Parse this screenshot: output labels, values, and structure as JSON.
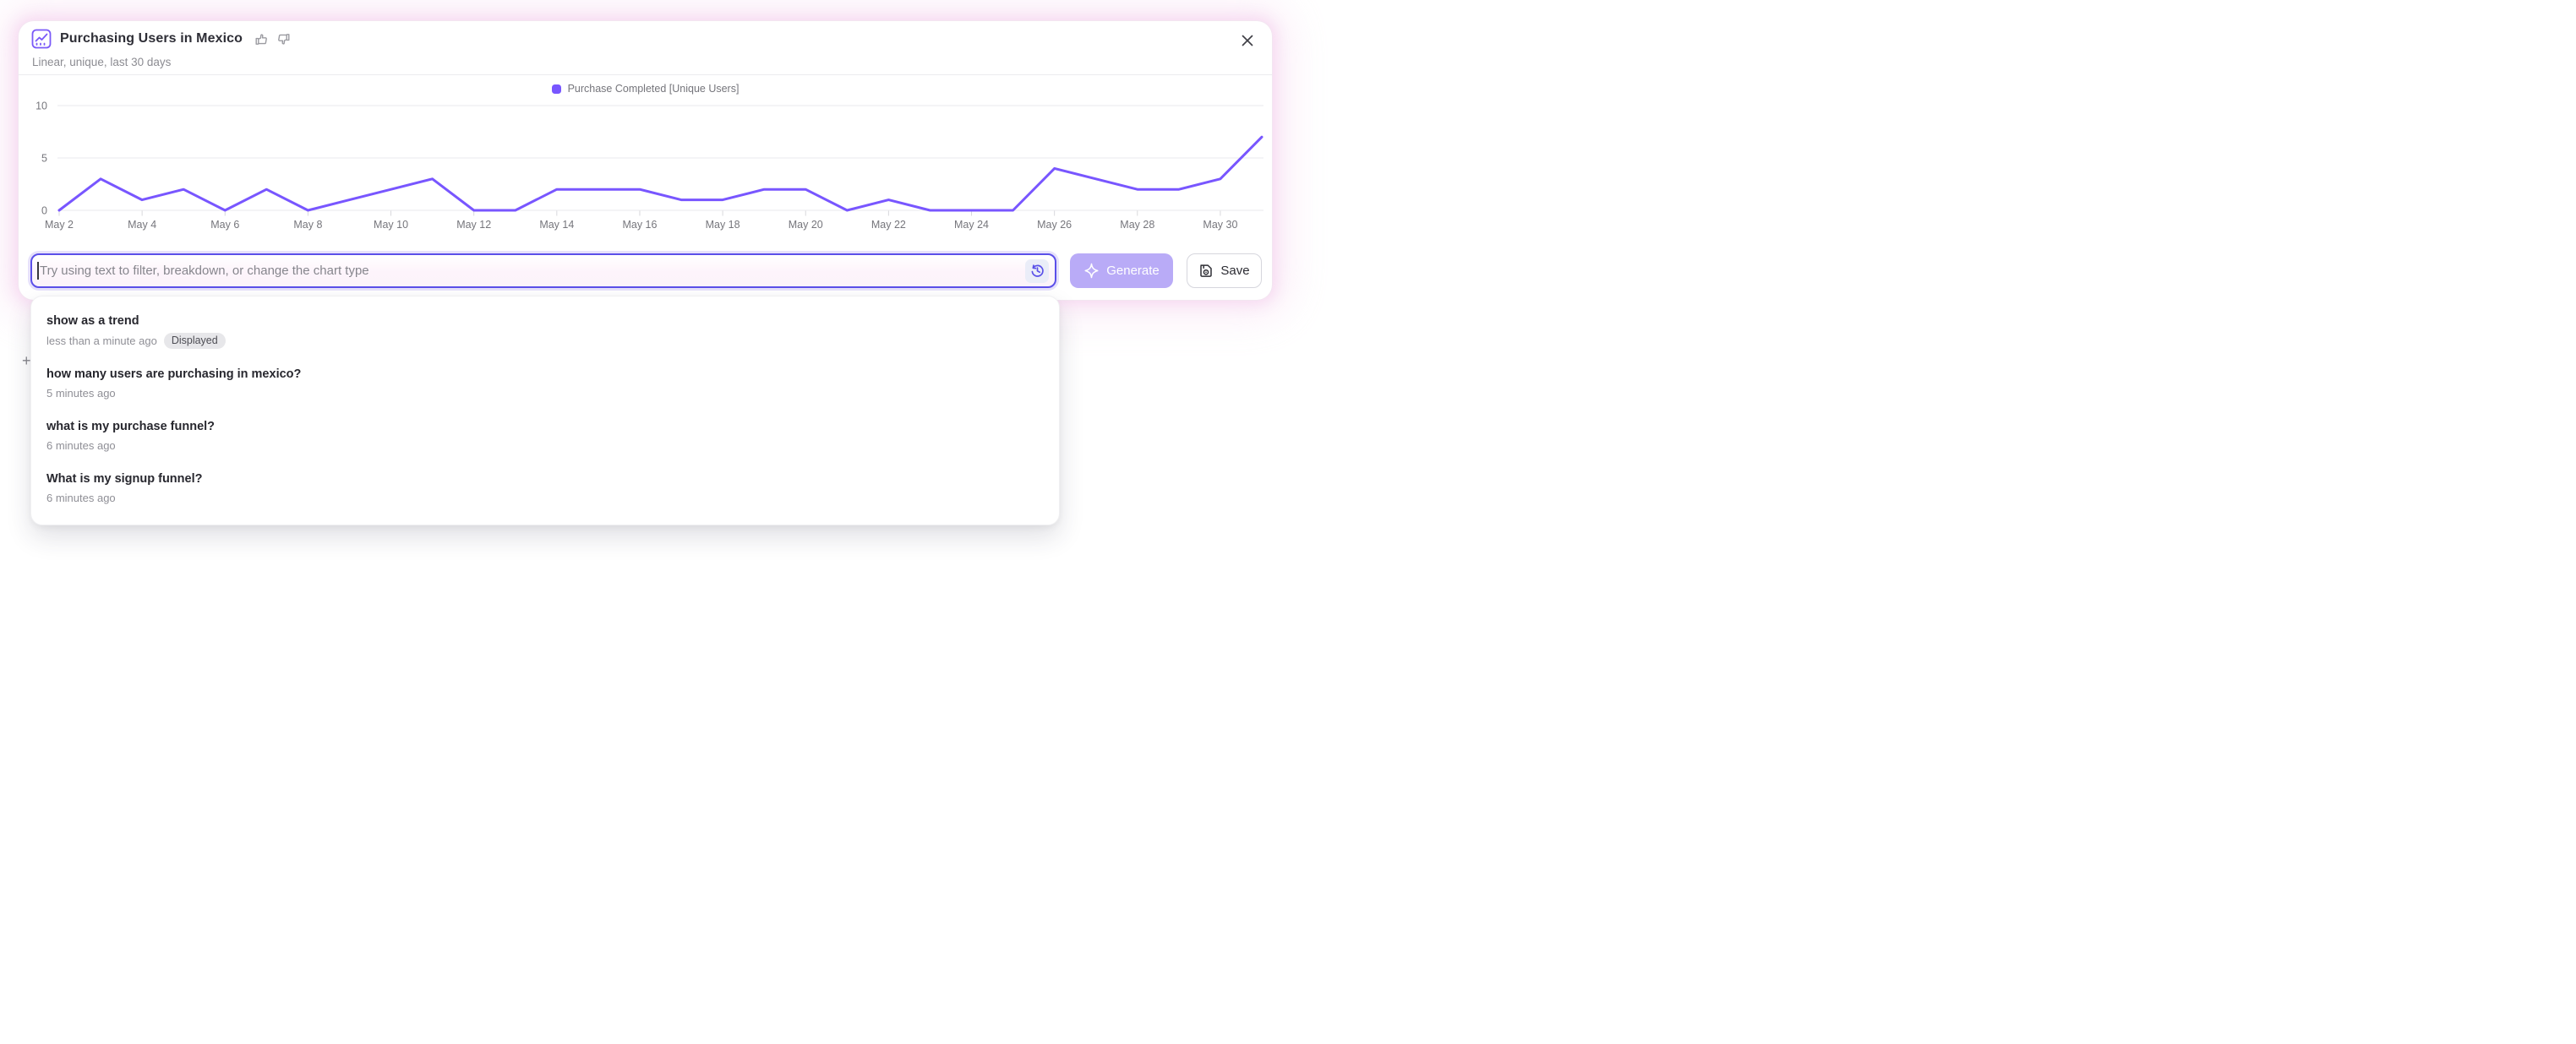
{
  "card": {
    "title": "Purchasing Users in Mexico",
    "subtitle": "Linear, unique, last 30 days"
  },
  "legend": {
    "label": "Purchase Completed [Unique Users]",
    "color": "#7856FF"
  },
  "chart_data": {
    "type": "line",
    "title": "Purchasing Users in Mexico",
    "series": [
      {
        "name": "Purchase Completed [Unique Users]",
        "color": "#7856FF",
        "values": [
          0,
          3,
          1,
          2,
          0,
          2,
          0,
          1,
          2,
          3,
          0,
          0,
          2,
          2,
          2,
          1,
          1,
          2,
          2,
          0,
          1,
          0,
          0,
          0,
          4,
          3,
          2,
          2,
          3,
          7
        ]
      }
    ],
    "dates": [
      "May 2",
      "May 3",
      "May 4",
      "May 5",
      "May 6",
      "May 7",
      "May 8",
      "May 9",
      "May 10",
      "May 11",
      "May 12",
      "May 13",
      "May 14",
      "May 15",
      "May 16",
      "May 17",
      "May 18",
      "May 19",
      "May 20",
      "May 21",
      "May 22",
      "May 23",
      "May 24",
      "May 25",
      "May 26",
      "May 27",
      "May 28",
      "May 29",
      "May 30",
      "May 31"
    ],
    "x_tick_labels": [
      "May 2",
      "May 4",
      "May 6",
      "May 8",
      "May 10",
      "May 12",
      "May 14",
      "May 16",
      "May 18",
      "May 20",
      "May 22",
      "May 24",
      "May 26",
      "May 28",
      "May 30"
    ],
    "x_tick_every": 2,
    "y_ticks": [
      0,
      5,
      10
    ],
    "ylim": [
      0,
      10
    ],
    "grid": "horizontal",
    "legend_position": "top-center"
  },
  "prompt_bar": {
    "value": "",
    "placeholder": "Try using text to filter, breakdown, or change the chart type"
  },
  "actions": {
    "generate_label": "Generate",
    "save_label": "Save"
  },
  "history_dropdown": {
    "items": [
      {
        "title": "show as a trend",
        "time": "less than a minute ago",
        "badge": "Displayed"
      },
      {
        "title": "how many users are purchasing in mexico?",
        "time": "5 minutes ago",
        "badge": ""
      },
      {
        "title": "what is my purchase funnel?",
        "time": "6 minutes ago",
        "badge": ""
      },
      {
        "title": "What is my signup funnel?",
        "time": "6 minutes ago",
        "badge": ""
      }
    ]
  },
  "background_page": {
    "plus_glyph": "+"
  },
  "colors": {
    "accent_purple": "#7856FF",
    "input_border": "#5B4FE9",
    "generate_bg": "#B9ABF7",
    "glow_pink": "#F6D6F0",
    "badge_bg": "#E7E7EA",
    "gridline": "#E9E9EC"
  }
}
